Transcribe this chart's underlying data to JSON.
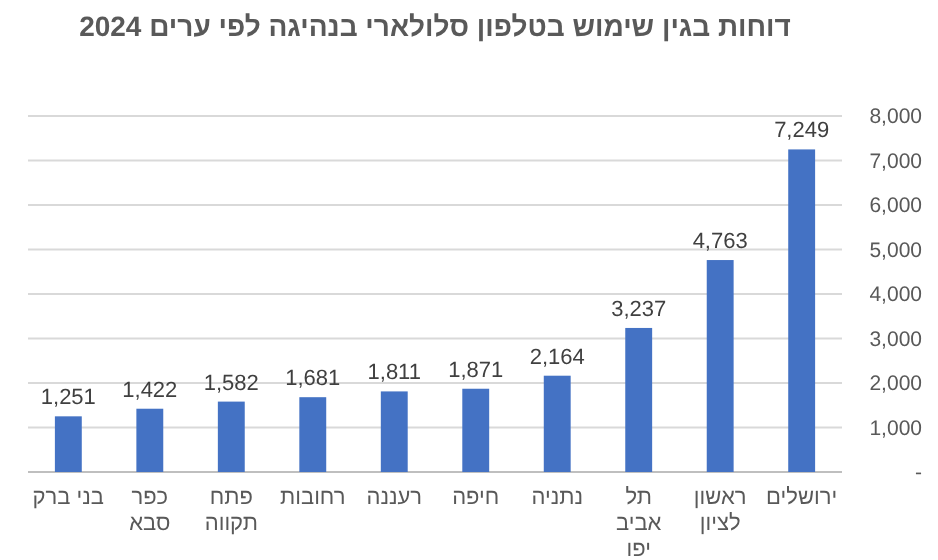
{
  "chart_data": {
    "type": "bar",
    "title": "דוחות בגין שימוש בטלפון סלולארי בנהיגה לפי ערים 2024",
    "categories": [
      "בני ברק",
      "כפר סבא",
      "פתח תקווה",
      "רחובות",
      "רעננה",
      "חיפה",
      "נתניה",
      "תל אביב יפו",
      "ראשון לציון",
      "ירושלים"
    ],
    "values": [
      1251,
      1422,
      1582,
      1681,
      1811,
      1871,
      2164,
      3237,
      4763,
      7249
    ],
    "value_labels": [
      "1,251",
      "1,422",
      "1,582",
      "1,681",
      "1,811",
      "1,871",
      "2,164",
      "3,237",
      "4,763",
      "7,249"
    ],
    "color": "#4472c4",
    "ylim": [
      0,
      8000
    ],
    "yticks": [
      {
        "value": 0,
        "label": "-"
      },
      {
        "value": 1000,
        "label": "1,000"
      },
      {
        "value": 2000,
        "label": "2,000"
      },
      {
        "value": 3000,
        "label": "3,000"
      },
      {
        "value": 4000,
        "label": "4,000"
      },
      {
        "value": 5000,
        "label": "5,000"
      },
      {
        "value": 6000,
        "label": "6,000"
      },
      {
        "value": 7000,
        "label": "7,000"
      },
      {
        "value": 8000,
        "label": "8,000"
      }
    ],
    "grid": "y"
  }
}
